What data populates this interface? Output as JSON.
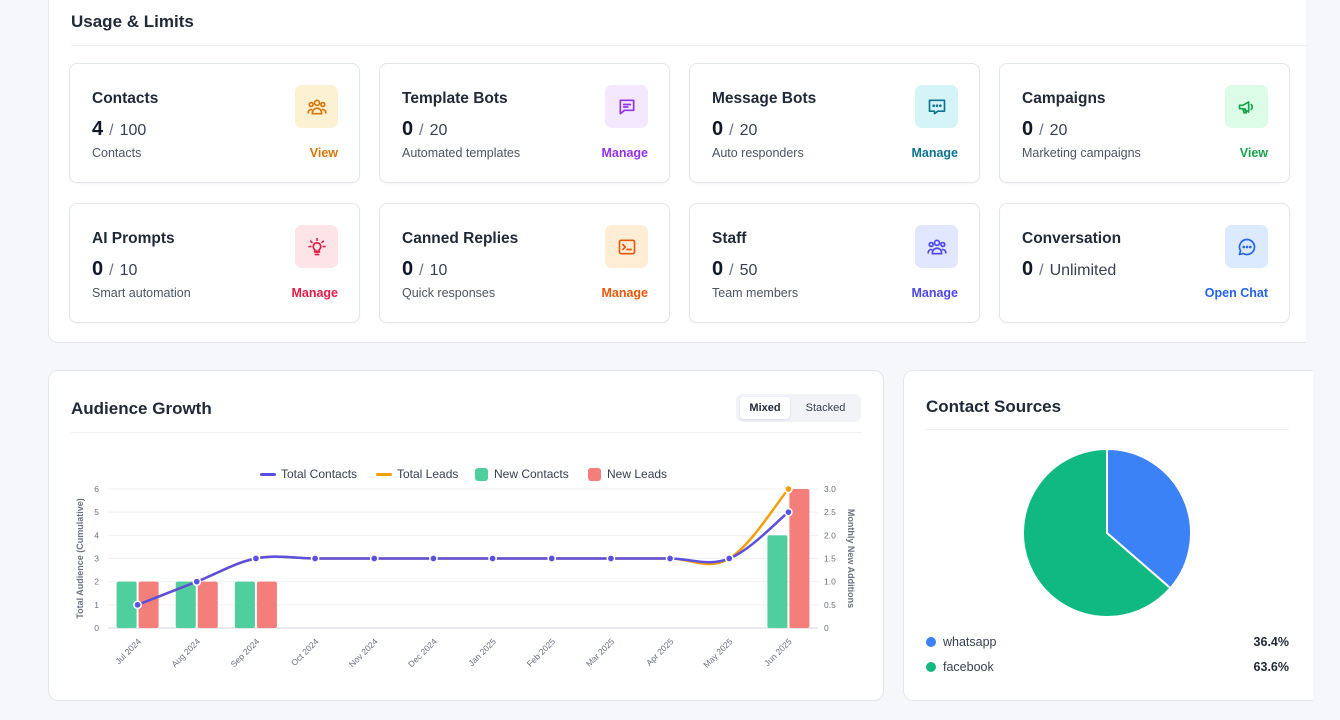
{
  "usage": {
    "title": "Usage & Limits",
    "cards": [
      {
        "title": "Contacts",
        "used": "4",
        "limit": "100",
        "subtitle": "Contacts",
        "action": "View",
        "icon": "users-icon",
        "color": "#d97706",
        "bg": "#fdf1d3"
      },
      {
        "title": "Template Bots",
        "used": "0",
        "limit": "20",
        "subtitle": "Automated templates",
        "action": "Manage",
        "icon": "message-square-icon",
        "color": "#9333ea",
        "bg": "#f3e8ff"
      },
      {
        "title": "Message Bots",
        "used": "0",
        "limit": "20",
        "subtitle": "Auto responders",
        "action": "Manage",
        "icon": "chat-dots-icon",
        "color": "#0e7490",
        "bg": "#d5f4f8"
      },
      {
        "title": "Campaigns",
        "used": "0",
        "limit": "20",
        "subtitle": "Marketing campaigns",
        "action": "View",
        "icon": "megaphone-icon",
        "color": "#16a34a",
        "bg": "#dcfce7"
      },
      {
        "title": "AI Prompts",
        "used": "0",
        "limit": "10",
        "subtitle": "Smart automation",
        "action": "Manage",
        "icon": "lightbulb-icon",
        "color": "#e11d48",
        "bg": "#fde4e7"
      },
      {
        "title": "Canned Replies",
        "used": "0",
        "limit": "10",
        "subtitle": "Quick responses",
        "action": "Manage",
        "icon": "terminal-icon",
        "color": "#ea580c",
        "bg": "#ffedd5"
      },
      {
        "title": "Staff",
        "used": "0",
        "limit": "50",
        "subtitle": "Team members",
        "action": "Manage",
        "icon": "team-icon",
        "color": "#4f46e5",
        "bg": "#e0e7ff"
      },
      {
        "title": "Conversation",
        "used": "0",
        "limit": "Unlimited",
        "subtitle": "",
        "action": "Open Chat",
        "icon": "chat-bubble-icon",
        "color": "#2563eb",
        "bg": "#dbeafe"
      }
    ]
  },
  "audience": {
    "title": "Audience Growth",
    "toggle": {
      "mixed": "Mixed",
      "stacked": "Stacked",
      "active": "Mixed"
    }
  },
  "chart_data": {
    "type": "bar",
    "title": "Audience Growth",
    "categories": [
      "Jul 2024",
      "Aug 2024",
      "Sep 2024",
      "Oct 2024",
      "Nov 2024",
      "Dec 2024",
      "Jan 2025",
      "Feb 2025",
      "Mar 2025",
      "Apr 2025",
      "May 2025",
      "Jun 2025"
    ],
    "series": [
      {
        "name": "Total Contacts",
        "kind": "line",
        "axis": "left",
        "color": "#5b4fe0",
        "values": [
          1,
          2,
          3,
          3,
          3,
          3,
          3,
          3,
          3,
          3,
          3,
          5
        ]
      },
      {
        "name": "Total Leads",
        "kind": "line",
        "axis": "left",
        "color": "#f59e0b",
        "values": [
          1,
          2,
          3,
          3,
          3,
          3,
          3,
          3,
          3,
          3,
          3,
          6
        ]
      },
      {
        "name": "New Contacts",
        "kind": "bar",
        "axis": "right",
        "color": "#4fce9e",
        "values": [
          1,
          1,
          1,
          0,
          0,
          0,
          0,
          0,
          0,
          0,
          0,
          2
        ]
      },
      {
        "name": "New Leads",
        "kind": "bar",
        "axis": "right",
        "color": "#f47f7a",
        "values": [
          1,
          1,
          1,
          0,
          0,
          0,
          0,
          0,
          0,
          0,
          0,
          3
        ]
      }
    ],
    "ylabel": "Total Audience (Cumulative)",
    "y2label": "Monthly New Additions",
    "ylim": [
      0,
      6
    ],
    "y2lim": [
      0,
      3
    ],
    "yticks": [
      "0",
      "1",
      "2",
      "3",
      "4",
      "5",
      "6"
    ],
    "y2ticks": [
      "0",
      "0.5",
      "1.0",
      "1.5",
      "2.0",
      "2.5",
      "3.0"
    ],
    "legend": "top-center",
    "grid": true
  },
  "sources": {
    "title": "Contact Sources",
    "items": [
      {
        "name": "whatsapp",
        "percent": "36.4%",
        "value": 36.4,
        "color": "#3b82f6"
      },
      {
        "name": "facebook",
        "percent": "63.6%",
        "value": 63.6,
        "color": "#10b981"
      }
    ]
  }
}
